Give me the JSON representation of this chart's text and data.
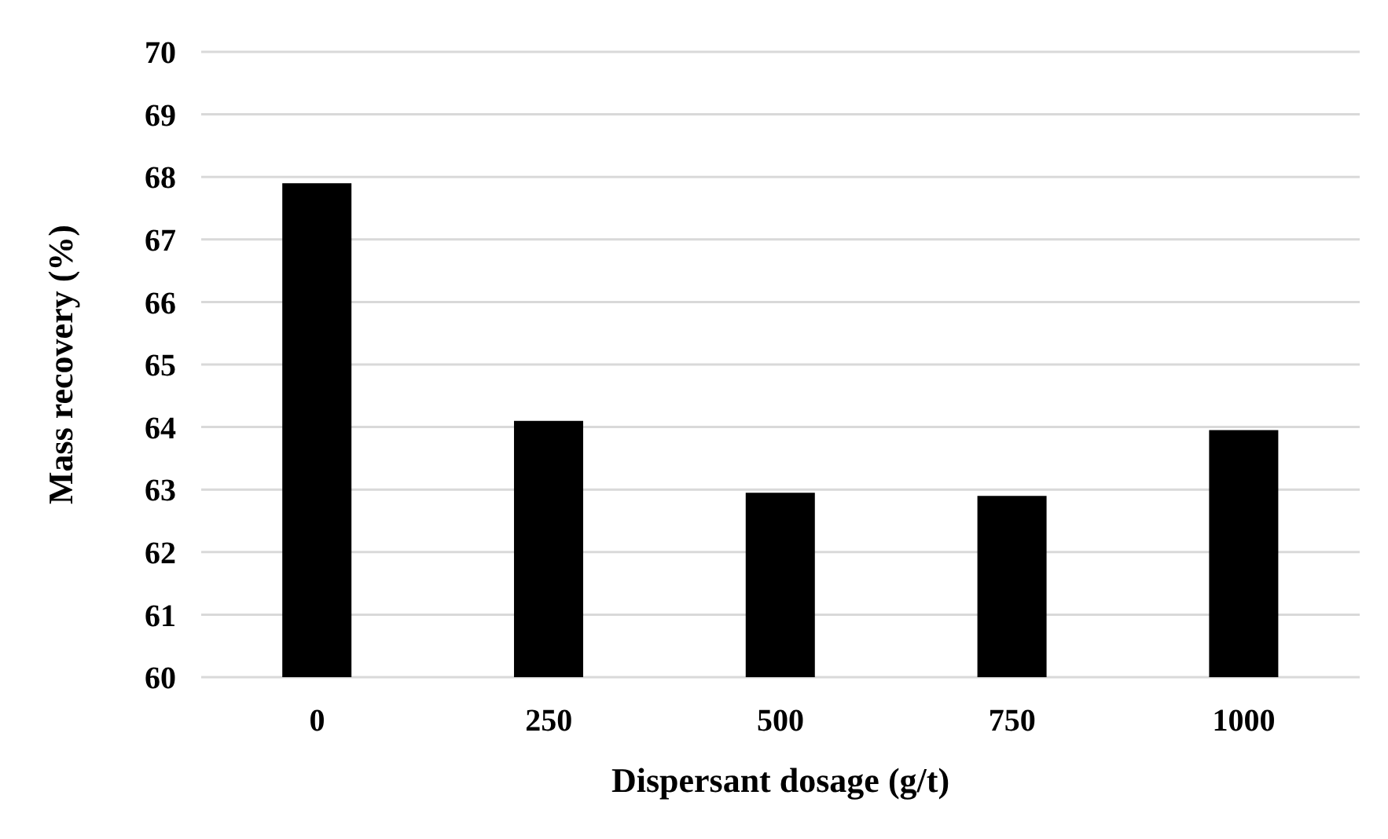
{
  "chart_data": {
    "type": "bar",
    "xlabel": "Dispersant dosage (g/t)",
    "ylabel": "Mass recovery (%)",
    "categories": [
      "0",
      "250",
      "500",
      "750",
      "1000"
    ],
    "values": [
      67.9,
      64.1,
      62.95,
      62.9,
      63.95
    ],
    "color": "#000000",
    "ylim": [
      60,
      70
    ],
    "yticks": [
      60,
      61,
      62,
      63,
      64,
      65,
      66,
      67,
      68,
      69,
      70
    ],
    "grid": "y",
    "legend": false
  }
}
